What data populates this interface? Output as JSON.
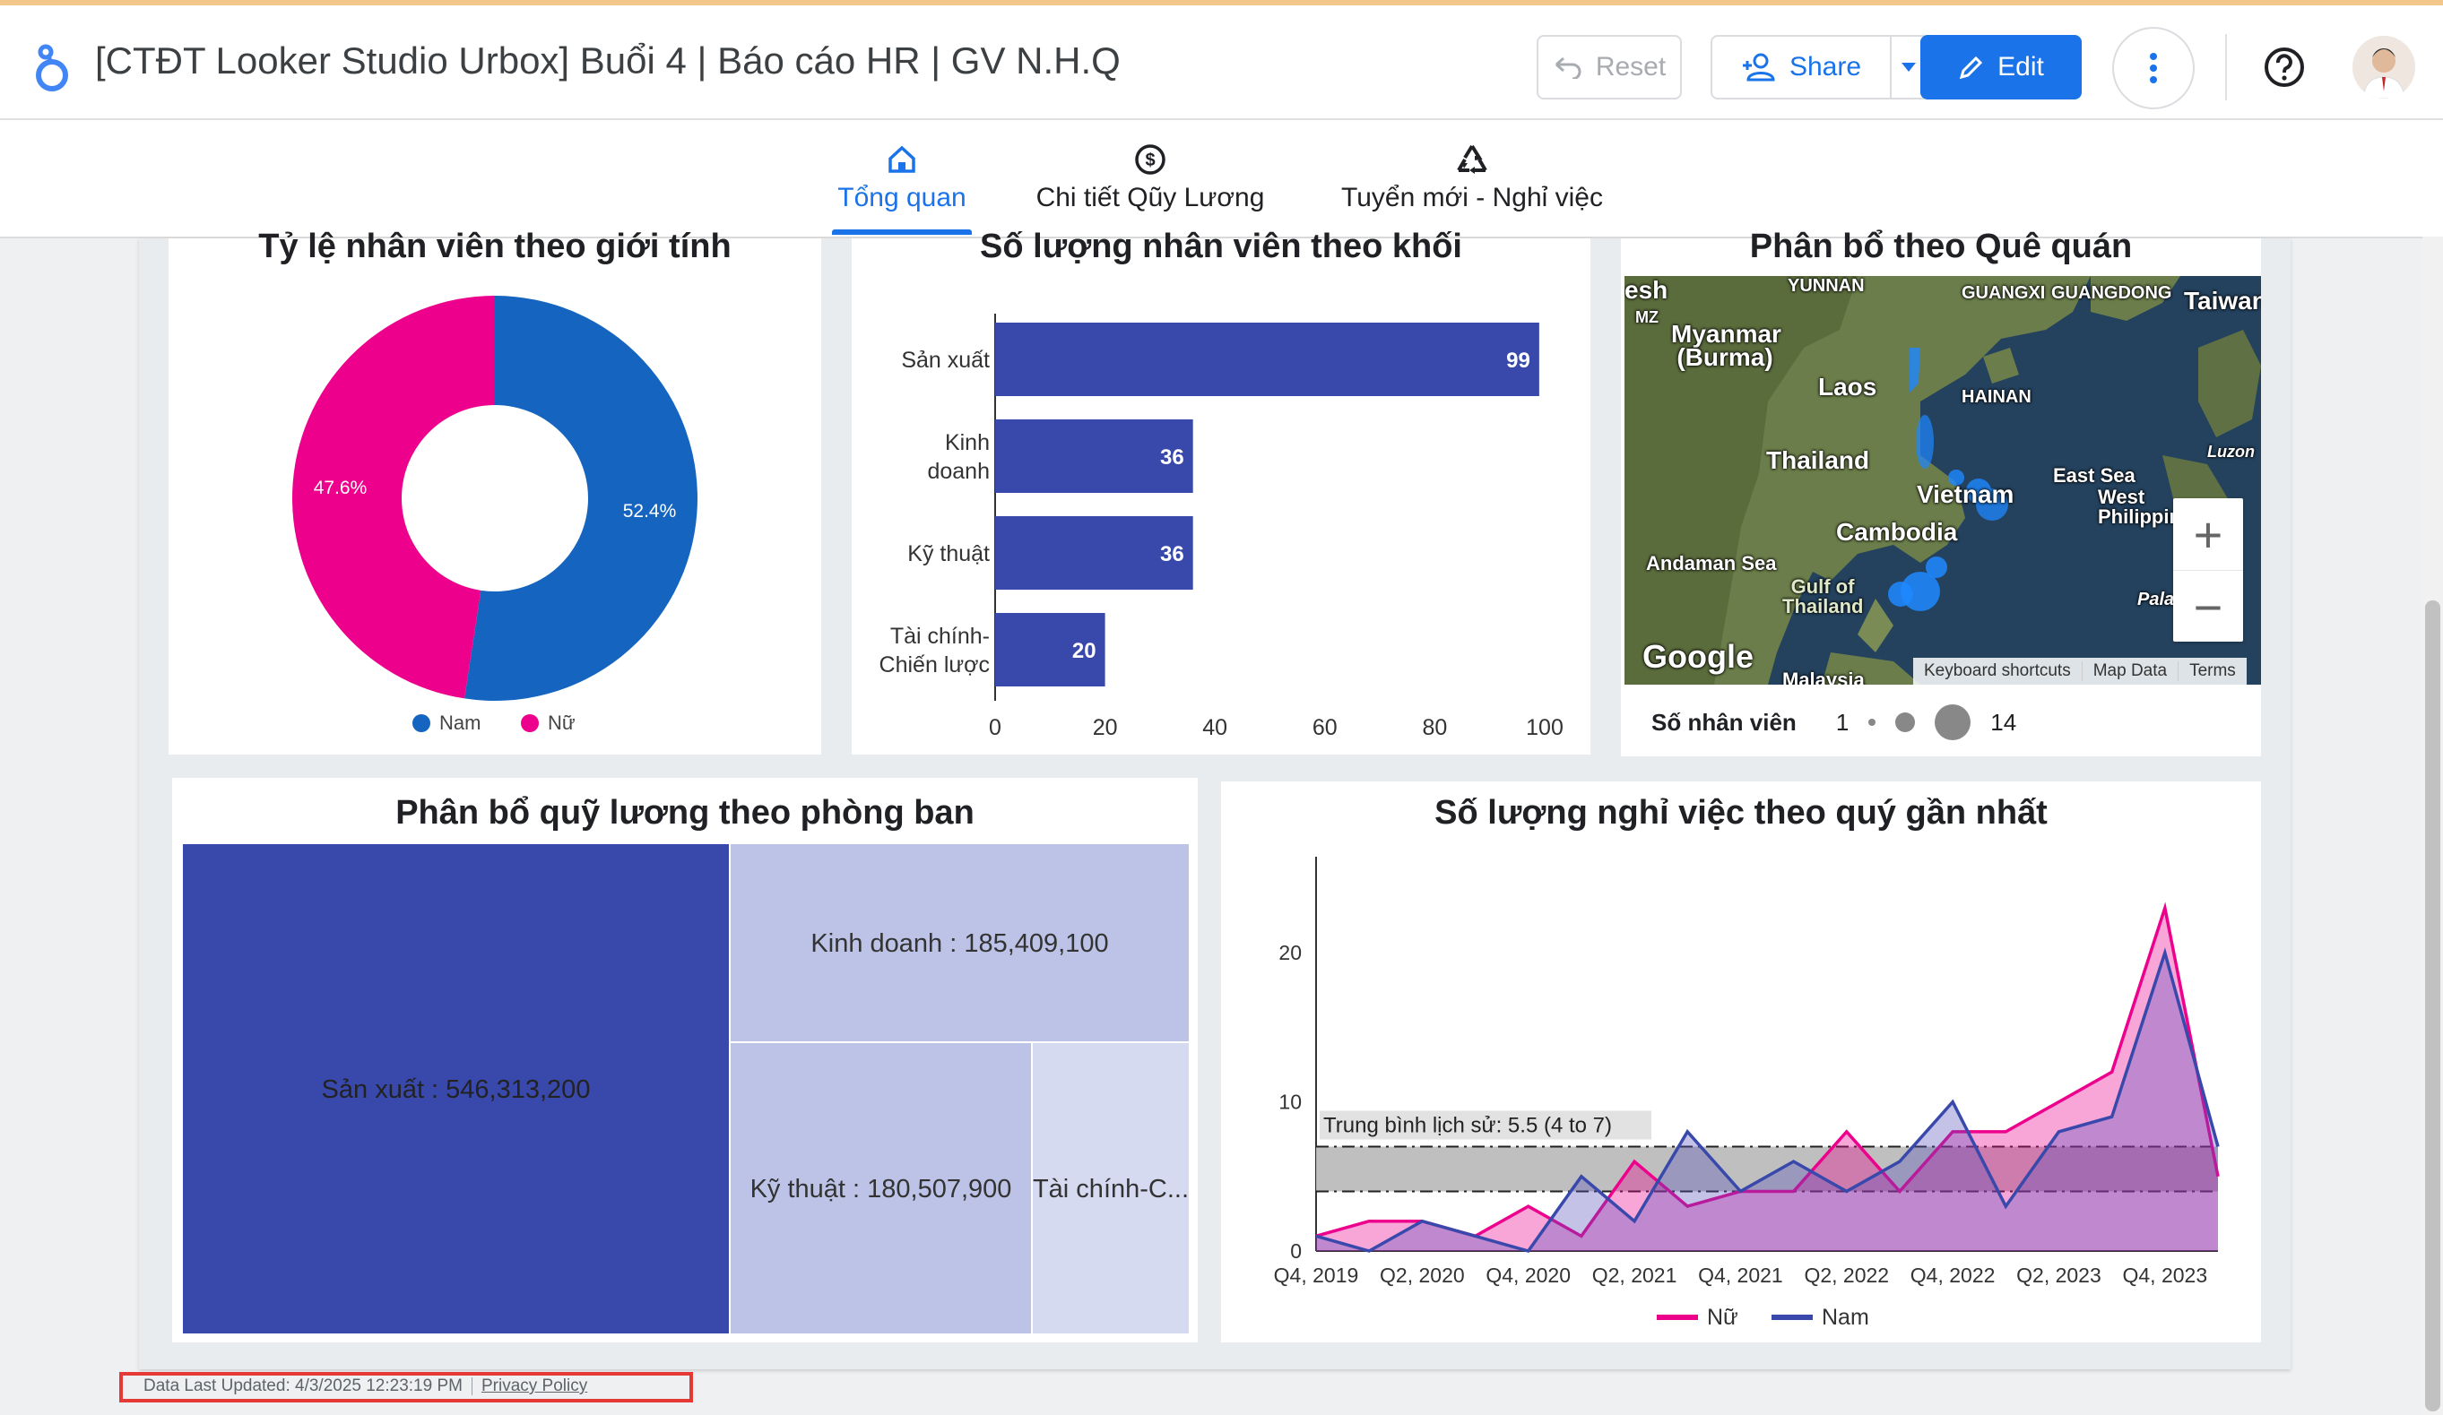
{
  "app": {
    "title": "[CTĐT Looker Studio Urbox] Buổi 4 | Báo cáo HR | GV N.H.Q",
    "buttons": {
      "reset": "Reset",
      "share": "Share",
      "edit": "Edit"
    },
    "icons": {
      "logo": "looker-studio-logo-icon",
      "reset": "undo-icon",
      "share": "person-add-icon",
      "edit": "pencil-icon",
      "more": "more-vert-icon",
      "help": "help-circle-icon"
    }
  },
  "tabs": [
    {
      "label": "Tổng quan",
      "icon": "home-icon",
      "active": true
    },
    {
      "label": "Chi tiết Qũy Lương",
      "icon": "dollar-circle-icon",
      "active": false
    },
    {
      "label": "Tuyển mới - Nghỉ việc",
      "icon": "recycle-icon",
      "active": false
    }
  ],
  "colors": {
    "accent": "#1a73e8",
    "nam": "#1565c0",
    "nu": "#ec008c",
    "bar": "#3949ab",
    "treemap_dark": "#3949ab",
    "treemap_mid": "#bcc3e6",
    "treemap_light": "#d6daf0"
  },
  "cards": {
    "gender": {
      "title": "Tỷ lệ nhân viên theo giới tính"
    },
    "division": {
      "title": "Số lượng nhân viên theo khối"
    },
    "hometown": {
      "title": "Phân bổ theo Quê quán"
    },
    "salary": {
      "title": "Phân bổ quỹ lương theo phòng ban"
    },
    "resign": {
      "title": "Số lượng nghỉ việc theo quý gần nhất"
    }
  },
  "map": {
    "labels": [
      "esh",
      "YUNNAN",
      "GUANGXI",
      "GUANGDONG",
      "Taiwan",
      "MZ",
      "Myanmar (Burma)",
      "Laos",
      "HAINAN",
      "Thailand",
      "East Sea",
      "Luzon",
      "Vietnam",
      "West Philippine",
      "Cambodia",
      "Andaman Sea",
      "Gulf of Thailand",
      "Pala",
      "Malaysia"
    ],
    "google": "Google",
    "footer": [
      "Keyboard shortcuts",
      "Map Data",
      "Terms"
    ],
    "legend": {
      "label": "Số nhân viên",
      "min": "1",
      "max": "14"
    },
    "zoom_in": "+",
    "zoom_out": "−"
  },
  "chart_data": [
    {
      "type": "pie",
      "title": "Tỷ lệ nhân viên theo giới tính",
      "donut": true,
      "slices": [
        {
          "label": "Nam",
          "value": 52.4,
          "display": "52.4%"
        },
        {
          "label": "Nữ",
          "value": 47.6,
          "display": "47.6%"
        }
      ],
      "legend": [
        "Nam",
        "Nữ"
      ],
      "legend_position": "bottom"
    },
    {
      "type": "bar",
      "orientation": "horizontal",
      "title": "Số lượng nhân viên theo khối",
      "categories": [
        "Sản xuất",
        "Kinh doanh",
        "Kỹ thuật",
        "Tài chính-Chiến lược"
      ],
      "category_lines": [
        [
          "Sản xuất"
        ],
        [
          "Kinh",
          "doanh"
        ],
        [
          "Kỹ thuật"
        ],
        [
          "Tài chính-",
          "Chiến lược"
        ]
      ],
      "values": [
        99,
        36,
        36,
        20
      ],
      "xlim": [
        0,
        100
      ],
      "xticks": [
        "0",
        "20",
        "40",
        "60",
        "80",
        "100"
      ]
    },
    {
      "type": "treemap",
      "title": "Phân bổ quỹ lương theo phòng ban",
      "items": [
        {
          "label": "Sản xuất : 546,313,200",
          "value": 546313200
        },
        {
          "label": "Kinh doanh : 185,409,100",
          "value": 185409100
        },
        {
          "label": "Kỹ thuật : 180,507,900",
          "value": 180507900
        },
        {
          "label": "Tài chính-C...",
          "value": 95000000
        }
      ]
    },
    {
      "type": "area",
      "title": "Số lượng nghỉ việc theo quý gần nhất",
      "x": [
        "Q4, 2019",
        "Q1, 2020",
        "Q2, 2020",
        "Q3, 2020",
        "Q4, 2020",
        "Q1, 2021",
        "Q2, 2021",
        "Q3, 2021",
        "Q4, 2021",
        "Q1, 2022",
        "Q2, 2022",
        "Q3, 2022",
        "Q4, 2022",
        "Q1, 2023",
        "Q2, 2023",
        "Q3, 2023",
        "Q4, 2023",
        "Q1, 2024"
      ],
      "xtick_labels": [
        "Q4, 2019",
        "Q2, 2020",
        "Q4, 2020",
        "Q2, 2021",
        "Q4, 2021",
        "Q2, 2022",
        "Q4, 2022",
        "Q2, 2023",
        "Q4, 2023"
      ],
      "yticks": [
        "0",
        "10",
        "20"
      ],
      "ylim": [
        0,
        25
      ],
      "series": [
        {
          "name": "Nữ",
          "values": [
            1,
            2,
            2,
            1,
            3,
            1,
            6,
            3,
            4,
            4,
            8,
            4,
            8,
            8,
            10,
            12,
            23,
            5
          ]
        },
        {
          "name": "Nam",
          "values": [
            1,
            0,
            2,
            1,
            0,
            5,
            2,
            8,
            4,
            6,
            4,
            6,
            10,
            3,
            8,
            9,
            20,
            7
          ]
        }
      ],
      "band": {
        "label": "Trung bình lịch sử: 5.5 (4 to 7)",
        "low": 4,
        "high": 7,
        "mean": 5.5
      },
      "legend": [
        "Nữ",
        "Nam"
      ]
    }
  ],
  "footer": {
    "updated": "Data Last Updated: 4/3/2025 12:23:19 PM",
    "privacy": "Privacy Policy"
  }
}
